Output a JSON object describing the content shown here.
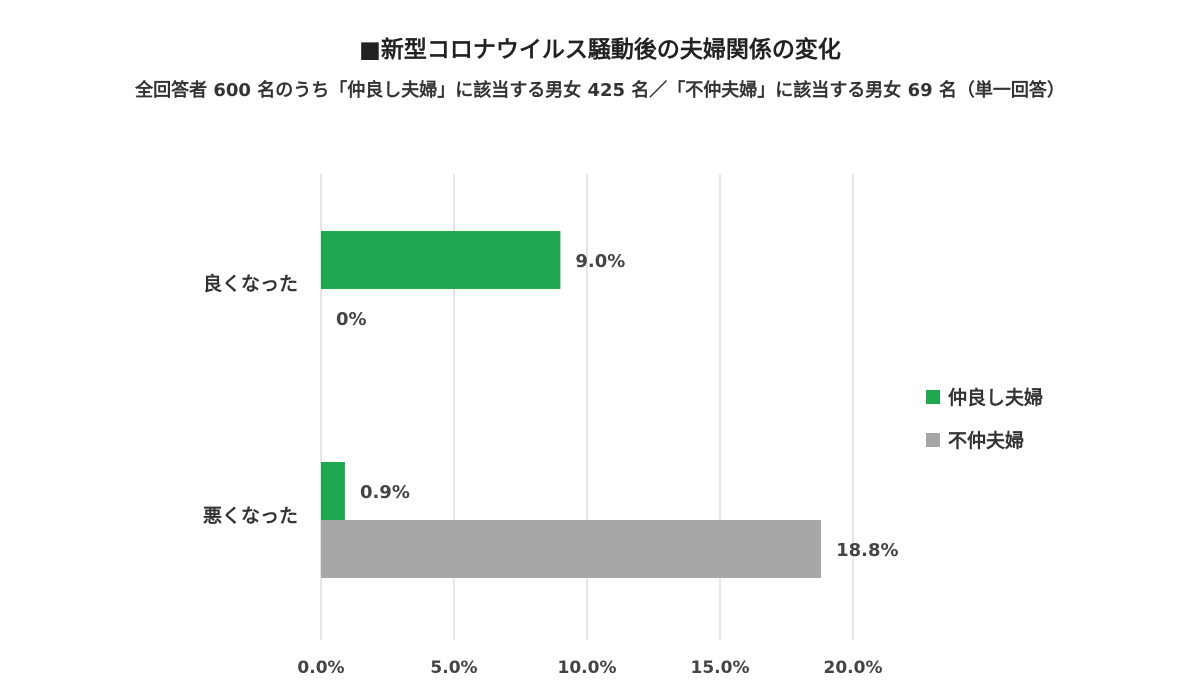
{
  "chart_data": {
    "type": "bar",
    "orientation": "horizontal",
    "title": "■新型コロナウイルス騒動後の夫婦関係の変化",
    "subtitle": "全回答者 600 名のうち「仲良し夫婦」に該当する男女 425 名／「不仲夫婦」に該当する男女 69 名（単一回答）",
    "categories": [
      "良くなった",
      "悪くなった"
    ],
    "series": [
      {
        "name": "仲良し夫婦",
        "values": [
          9.0,
          0.9
        ],
        "labels": [
          "9.0%",
          "0.9%"
        ],
        "color": "#1fa84f"
      },
      {
        "name": "不仲夫婦",
        "values": [
          0.0,
          18.8
        ],
        "labels": [
          "0%",
          "18.8%"
        ],
        "color": "#a8a6a6"
      }
    ],
    "xlim": [
      0,
      20
    ],
    "xticks": [
      0,
      5,
      10,
      15,
      20
    ],
    "xtick_labels": [
      "0.0%",
      "5.0%",
      "10.0%",
      "15.0%",
      "20.0%"
    ],
    "grid": true,
    "legend_position": "right"
  }
}
